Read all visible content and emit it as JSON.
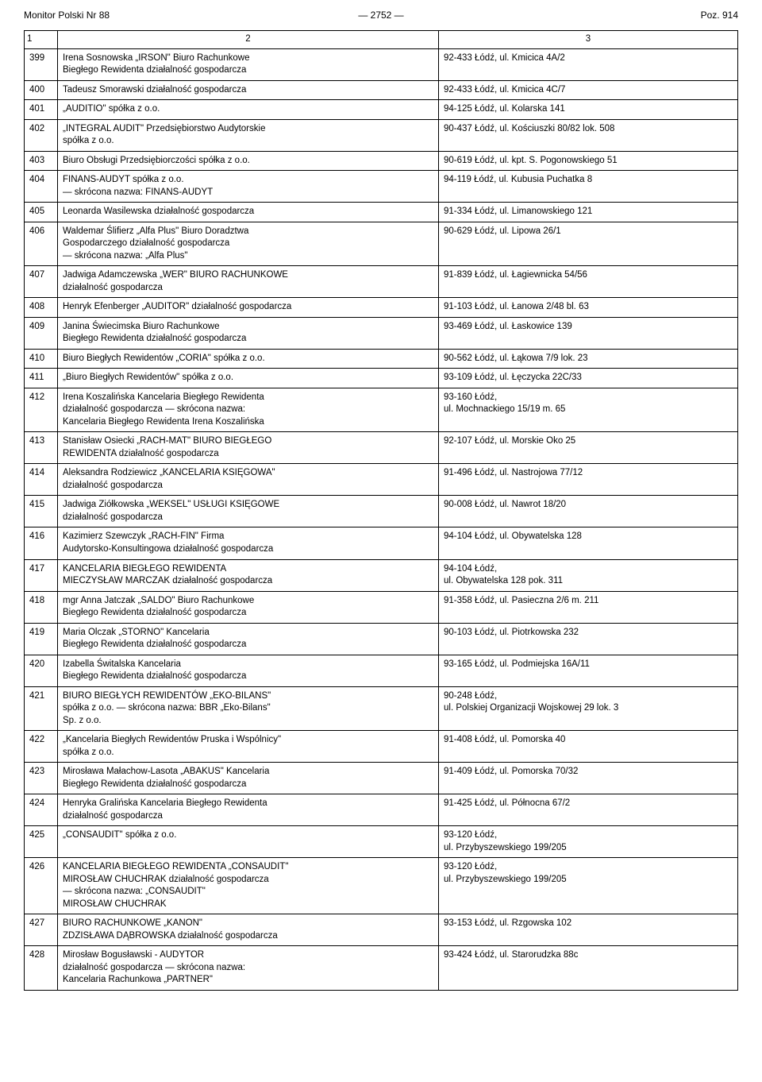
{
  "header": {
    "left": "Monitor Polski Nr 88",
    "center": "—  2752  —",
    "right": "Poz. 914"
  },
  "thead": {
    "c1": "1",
    "c2": "2",
    "c3": "3"
  },
  "rows": [
    {
      "n": "399",
      "name": "Irena Sosnowska „IRSON\" Biuro Rachunkowe\nBiegłego Rewidenta działalność gospodarcza",
      "addr": "92-433 Łódź, ul. Kmicica 4A/2"
    },
    {
      "n": "400",
      "name": "Tadeusz Smorawski działalność gospodarcza",
      "addr": "92-433 Łódź, ul. Kmicica 4C/7"
    },
    {
      "n": "401",
      "name": "„AUDITIO\" spółka z o.o.",
      "addr": "94-125 Łódź, ul. Kolarska 141"
    },
    {
      "n": "402",
      "name": "„INTEGRAL AUDIT\" Przedsiębiorstwo Audytorskie\nspółka z o.o.",
      "addr": "90-437 Łódź, ul. Kościuszki 80/82 lok. 508"
    },
    {
      "n": "403",
      "name": "Biuro Obsługi Przedsiębiorczości spółka z o.o.",
      "addr": "90-619 Łódź, ul. kpt. S. Pogonowskiego 51"
    },
    {
      "n": "404",
      "name": "FINANS-AUDYT spółka z o.o.\n— skrócona nazwa: FINANS-AUDYT",
      "addr": "94-119 Łódź, ul. Kubusia Puchatka 8"
    },
    {
      "n": "405",
      "name": "Leonarda Wasilewska działalność gospodarcza",
      "addr": "91-334 Łódź, ul. Limanowskiego 121"
    },
    {
      "n": "406",
      "name": "Waldemar Ślifierz „Alfa Plus\" Biuro Doradztwa\nGospodarczego działalność gospodarcza\n— skrócona nazwa: „Alfa Plus\"",
      "addr": "90-629 Łódź, ul. Lipowa 26/1"
    },
    {
      "n": "407",
      "name": "Jadwiga Adamczewska „WER\" BIURO RACHUNKOWE\ndziałalność gospodarcza",
      "addr": "91-839 Łódź, ul. Łagiewnicka 54/56"
    },
    {
      "n": "408",
      "name": "Henryk Efenberger „AUDITOR\" działalność gospodarcza",
      "addr": "91-103 Łódź, ul. Łanowa 2/48 bl. 63"
    },
    {
      "n": "409",
      "name": "Janina Świecimska Biuro Rachunkowe\nBiegłego Rewidenta działalność gospodarcza",
      "addr": "93-469 Łódź, ul. Łaskowice 139"
    },
    {
      "n": "410",
      "name": "Biuro Biegłych Rewidentów „CORIA\" spółka z o.o.",
      "addr": " 90-562 Łódź, ul. Łąkowa 7/9 lok. 23"
    },
    {
      "n": "411",
      "name": "„Biuro Biegłych Rewidentów\" spółka z o.o.",
      "addr": "93-109 Łódź, ul. Łęczycka 22C/33"
    },
    {
      "n": "412",
      "name": "Irena Koszalińska Kancelaria Biegłego Rewidenta\ndziałalność gospodarcza — skrócona nazwa:\nKancelaria Biegłego Rewidenta Irena Koszalińska",
      "addr": "93-160 Łódź,\nul. Mochnackiego 15/19 m. 65"
    },
    {
      "n": "413",
      "name": "Stanisław Osiecki „RACH-MAT\" BIURO BIEGŁEGO\nREWIDENTA działalność gospodarcza",
      "addr": "92-107 Łódź, ul. Morskie Oko 25"
    },
    {
      "n": "414",
      "name": "Aleksandra Rodziewicz „KANCELARIA KSIĘGOWA\"\ndziałalność gospodarcza",
      "addr": "91-496 Łódź, ul. Nastrojowa 77/12"
    },
    {
      "n": "415",
      "name": "Jadwiga Ziółkowska „WEKSEL\" USŁUGI KSIĘGOWE\ndziałalność gospodarcza",
      "addr": "90-008 Łódź, ul. Nawrot 18/20"
    },
    {
      "n": "416",
      "name": "Kazimierz Szewczyk „RACH-FIN\" Firma\nAudytorsko-Konsultingowa działalność gospodarcza",
      "addr": "94-104 Łódź, ul. Obywatelska 128"
    },
    {
      "n": "417",
      "name": "KANCELARIA BIEGŁEGO REWIDENTA\nMIECZYSŁAW MARCZAK działalność gospodarcza",
      "addr": "94-104 Łódź,\nul. Obywatelska 128 pok. 311"
    },
    {
      "n": "418",
      "name": "mgr Anna Jatczak „SALDO\" Biuro Rachunkowe\nBiegłego Rewidenta działalność gospodarcza",
      "addr": "91-358 Łódź, ul. Pasieczna 2/6 m. 211"
    },
    {
      "n": "419",
      "name": "Maria Olczak „STORNO\" Kancelaria\nBiegłego Rewidenta działalność gospodarcza",
      "addr": "90-103 Łódź, ul. Piotrkowska 232"
    },
    {
      "n": "420",
      "name": "Izabella Świtalska Kancelaria\nBiegłego Rewidenta działalność gospodarcza",
      "addr": "93-165 Łódź, ul. Podmiejska 16A/11"
    },
    {
      "n": "421",
      "name": "BIURO BIEGŁYCH REWIDENTÓW „EKO-BILANS\"\nspółka z o.o. — skrócona nazwa: BBR „Eko-Bilans\"\nSp. z o.o.",
      "addr": "90-248 Łódź,\nul. Polskiej Organizacji Wojskowej 29 lok. 3"
    },
    {
      "n": "422",
      "name": "„Kancelaria Biegłych Rewidentów Pruska i Wspólnicy\"\nspółka z o.o.",
      "addr": "91-408 Łódź, ul. Pomorska 40"
    },
    {
      "n": "423",
      "name": "Mirosława Małachow-Lasota „ABAKUS\" Kancelaria\nBiegłego Rewidenta działalność gospodarcza",
      "addr": "91-409 Łódź, ul. Pomorska 70/32"
    },
    {
      "n": "424",
      "name": "Henryka Gralińska Kancelaria Biegłego Rewidenta\ndziałalność gospodarcza",
      "addr": "91-425 Łódź, ul. Północna 67/2"
    },
    {
      "n": "425",
      "name": "„CONSAUDIT\" spółka z o.o.",
      "addr": "93-120 Łódź,\nul. Przybyszewskiego 199/205"
    },
    {
      "n": "426",
      "name": "KANCELARIA BIEGŁEGO REWIDENTA „CONSAUDIT\"\nMIROSŁAW CHUCHRAK działalność gospodarcza\n— skrócona nazwa: „CONSAUDIT\"\nMIROSŁAW CHUCHRAK",
      "addr": "93-120 Łódź,\nul. Przybyszewskiego 199/205"
    },
    {
      "n": "427",
      "name": "BIURO RACHUNKOWE „KANON\"\nZDZISŁAWA DĄBROWSKA działalność gospodarcza",
      "addr": "93-153 Łódź, ul. Rzgowska 102"
    },
    {
      "n": "428",
      "name": "Mirosław Bogusławski - AUDYTOR\ndziałalność gospodarcza — skrócona nazwa:\nKancelaria Rachunkowa „PARTNER\"",
      "addr": "93-424 Łódź, ul. Starorudzka 88c"
    }
  ]
}
